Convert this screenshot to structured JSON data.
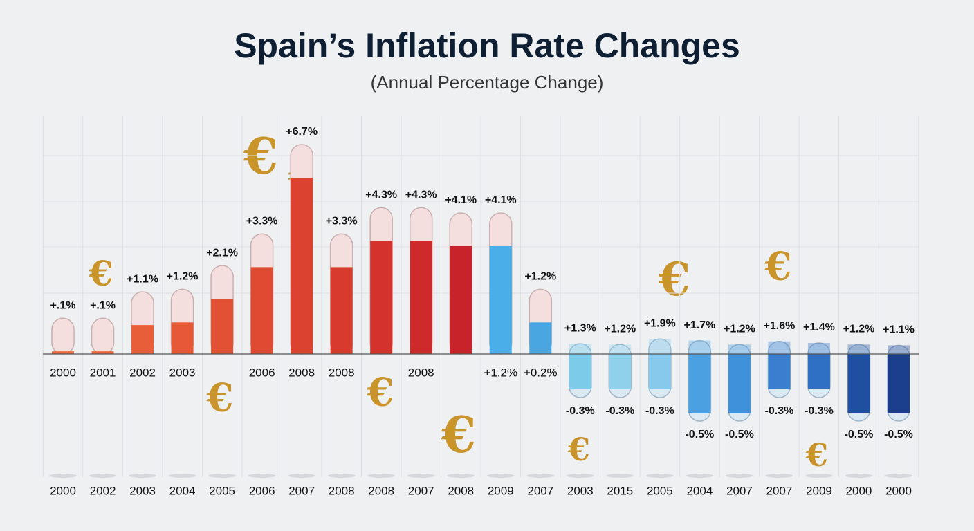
{
  "chart_data": {
    "type": "tube",
    "title": "Spain’s Inflation Rate Changes",
    "subtitle": "(Annual Percentage Change)",
    "icon": "€",
    "categories": [
      "2000",
      "2002",
      "2003",
      "2004",
      "2005",
      "2006",
      "2007",
      "2008",
      "2008",
      "2007",
      "2008",
      "2009",
      "2007",
      "2003",
      "2015",
      "2005",
      "2004",
      "2007",
      "2007",
      "2009",
      "2000",
      "2000"
    ],
    "upper_labels": [
      "2000",
      "2001",
      "2002",
      "2003",
      null,
      "2006",
      "2008",
      "2008",
      null,
      "2008",
      null,
      "+1.2%",
      "+0.2%",
      null,
      null,
      null,
      null,
      null,
      null,
      null,
      null,
      null
    ],
    "values": [
      0.1,
      0.1,
      1.1,
      1.2,
      2.1,
      3.3,
      6.7,
      3.3,
      4.3,
      4.3,
      4.1,
      4.1,
      1.2,
      1.3,
      1.2,
      1.9,
      1.7,
      1.2,
      1.6,
      1.4,
      1.2,
      1.1
    ],
    "value_labels": [
      "+.1%",
      "+.1%",
      "+1.1%",
      "+1.2%",
      "+2.1%",
      "+3.3%",
      "+6.7%",
      "+3.3%",
      "+4.3%",
      "+4.3%",
      "+4.1%",
      "+4.1%",
      "+1.2%",
      "+1.3%",
      "+1.2%",
      "+1.9%",
      "+1.7%",
      "+1.2%",
      "+1.6%",
      "+1.4%",
      "+1.2%",
      "+1.1%"
    ],
    "lower_values": [
      null,
      null,
      null,
      null,
      null,
      null,
      null,
      null,
      null,
      null,
      null,
      null,
      null,
      -0.3,
      -0.3,
      -0.3,
      -0.5,
      -0.5,
      -0.3,
      -0.3,
      -0.5,
      -0.5
    ],
    "lower_value_labels": [
      null,
      null,
      null,
      null,
      null,
      null,
      null,
      null,
      null,
      null,
      null,
      null,
      null,
      "-0.3%",
      "-0.3%",
      "-0.3%",
      "-0.5%",
      "-0.5%",
      "-0.3%",
      "-0.3%",
      "-0.5%",
      "-0.5%"
    ],
    "colors": [
      "#ec6a3c",
      "#ea643a",
      "#e85e38",
      "#e65836",
      "#e35134",
      "#e04a32",
      "#dc4230",
      "#d83a2e",
      "#d4322c",
      "#cf2a2b",
      "#c8232a",
      "#4aaee8",
      "#4aa6e0",
      "#7ccbe8",
      "#8fd0ea",
      "#86c9ec",
      "#4aa0e0",
      "#3f92da",
      "#3a7fcf",
      "#2f6fc4",
      "#1f4fa0",
      "#1b3f8c"
    ]
  }
}
